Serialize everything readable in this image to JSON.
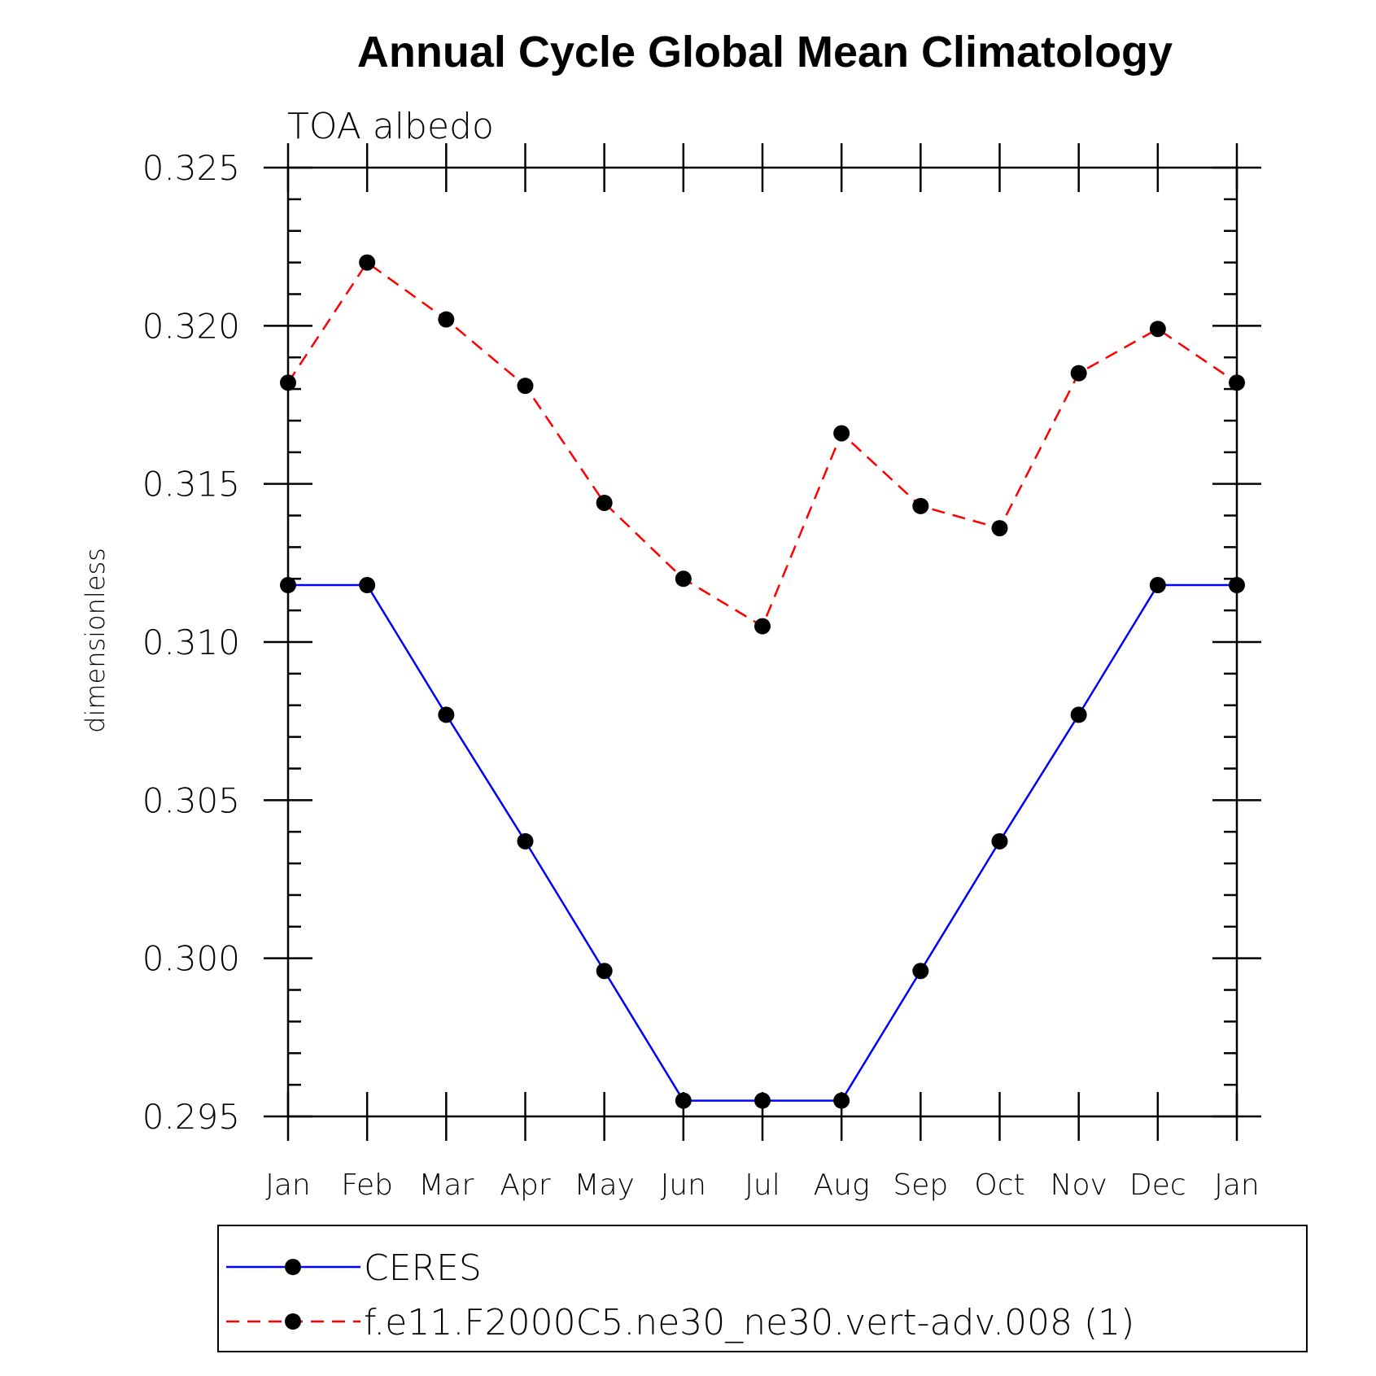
{
  "chart_data": {
    "type": "line",
    "title": "Annual Cycle Global Mean Climatology",
    "subtitle": "TOA albedo",
    "ylabel": "dimensionless",
    "xlabel": "",
    "categories": [
      "Jan",
      "Feb",
      "Mar",
      "Apr",
      "May",
      "Jun",
      "Jul",
      "Aug",
      "Sep",
      "Oct",
      "Nov",
      "Dec",
      "Jan"
    ],
    "ylim": [
      0.295,
      0.325
    ],
    "yticks": [
      "0.325",
      "0.320",
      "0.315",
      "0.310",
      "0.305",
      "0.300",
      "0.295"
    ],
    "series": [
      {
        "name": "CERES",
        "color": "#0000ff",
        "dash": "solid",
        "values": [
          0.3118,
          0.3118,
          0.3077,
          0.3037,
          0.2996,
          0.2955,
          0.2955,
          0.2955,
          0.2996,
          0.3037,
          0.3077,
          0.3118,
          0.3118
        ]
      },
      {
        "name": "f.e11.F2000C5.ne30_ne30.vert-adv.008 (1)",
        "color": "#ff0000",
        "dash": "dashed",
        "values": [
          0.3182,
          0.322,
          0.3202,
          0.3181,
          0.3144,
          0.312,
          0.3105,
          0.3166,
          0.3143,
          0.3136,
          0.3185,
          0.3199,
          0.3182
        ]
      }
    ],
    "marker": "filled-circle",
    "marker_color": "#000000",
    "legend_position": "bottom"
  }
}
